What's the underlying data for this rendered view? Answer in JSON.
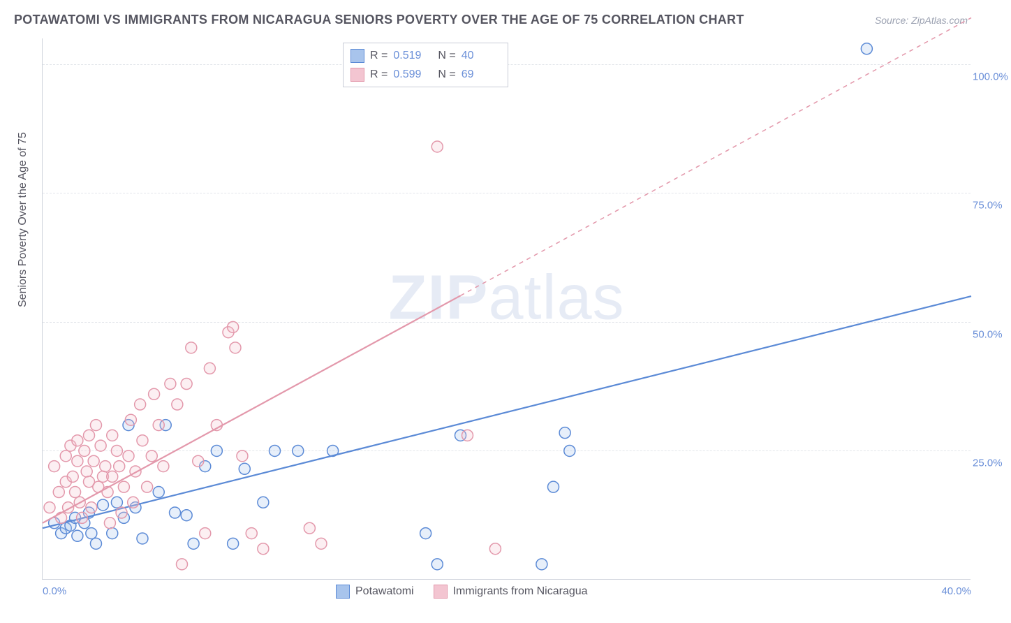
{
  "title": "POTAWATOMI VS IMMIGRANTS FROM NICARAGUA SENIORS POVERTY OVER THE AGE OF 75 CORRELATION CHART",
  "source": "Source: ZipAtlas.com",
  "y_axis_label": "Seniors Poverty Over the Age of 75",
  "watermark": {
    "part1": "ZIP",
    "part2": "atlas"
  },
  "chart": {
    "type": "scatter",
    "xlim": [
      0,
      40
    ],
    "ylim": [
      0,
      105
    ],
    "x_ticks": [
      {
        "v": 0,
        "label": "0.0%"
      },
      {
        "v": 40,
        "label": "40.0%"
      }
    ],
    "y_ticks": [
      {
        "v": 25,
        "label": "25.0%"
      },
      {
        "v": 50,
        "label": "50.0%"
      },
      {
        "v": 75,
        "label": "75.0%"
      },
      {
        "v": 100,
        "label": "100.0%"
      }
    ],
    "background_color": "#ffffff",
    "grid_color": "#e2e5ea",
    "marker_radius": 8,
    "marker_stroke_width": 1.5,
    "marker_fill_opacity": 0.28,
    "line_width": 2.2,
    "dash_pattern": "6 6",
    "series": [
      {
        "name": "Potawatomi",
        "color_stroke": "#5b8ad6",
        "color_fill": "#a8c4ec",
        "R": "0.519",
        "N": "40",
        "trend": {
          "x1": 0,
          "y1": 10,
          "x2": 40,
          "y2": 55,
          "solid_until_x": 40
        },
        "points": [
          [
            0.5,
            11
          ],
          [
            0.8,
            9
          ],
          [
            1.0,
            10
          ],
          [
            1.2,
            10.5
          ],
          [
            1.4,
            12
          ],
          [
            1.5,
            8.5
          ],
          [
            1.8,
            11
          ],
          [
            2.0,
            13
          ],
          [
            2.1,
            9
          ],
          [
            2.3,
            7
          ],
          [
            2.6,
            14.5
          ],
          [
            3.0,
            9
          ],
          [
            3.2,
            15
          ],
          [
            3.5,
            12
          ],
          [
            3.7,
            30
          ],
          [
            4.0,
            14
          ],
          [
            4.3,
            8
          ],
          [
            5.0,
            17
          ],
          [
            5.3,
            30
          ],
          [
            5.7,
            13
          ],
          [
            6.2,
            12.5
          ],
          [
            6.5,
            7
          ],
          [
            7.0,
            22
          ],
          [
            7.5,
            25
          ],
          [
            8.2,
            7
          ],
          [
            8.7,
            21.5
          ],
          [
            9.5,
            15
          ],
          [
            10.0,
            25
          ],
          [
            11.0,
            25
          ],
          [
            12.5,
            25
          ],
          [
            16.5,
            9
          ],
          [
            17.0,
            3
          ],
          [
            18.0,
            28
          ],
          [
            21.5,
            3
          ],
          [
            22.0,
            18
          ],
          [
            22.5,
            28.5
          ],
          [
            22.7,
            25
          ],
          [
            35.5,
            103
          ]
        ]
      },
      {
        "name": "Immigrants from Nicaragua",
        "color_stroke": "#e398ab",
        "color_fill": "#f3c5d1",
        "R": "0.599",
        "N": "69",
        "trend": {
          "x1": 0,
          "y1": 11,
          "x2": 40,
          "y2": 109,
          "solid_until_x": 18
        },
        "points": [
          [
            0.3,
            14
          ],
          [
            0.5,
            22
          ],
          [
            0.7,
            17
          ],
          [
            0.8,
            12
          ],
          [
            1.0,
            19
          ],
          [
            1.0,
            24
          ],
          [
            1.1,
            14
          ],
          [
            1.2,
            26
          ],
          [
            1.3,
            20
          ],
          [
            1.4,
            17
          ],
          [
            1.5,
            23
          ],
          [
            1.5,
            27
          ],
          [
            1.6,
            15
          ],
          [
            1.7,
            12
          ],
          [
            1.8,
            25
          ],
          [
            1.9,
            21
          ],
          [
            2.0,
            19
          ],
          [
            2.0,
            28
          ],
          [
            2.1,
            14
          ],
          [
            2.2,
            23
          ],
          [
            2.3,
            30
          ],
          [
            2.4,
            18
          ],
          [
            2.5,
            26
          ],
          [
            2.6,
            20
          ],
          [
            2.7,
            22
          ],
          [
            2.8,
            17
          ],
          [
            2.9,
            11
          ],
          [
            3.0,
            20
          ],
          [
            3.0,
            28
          ],
          [
            3.2,
            25
          ],
          [
            3.3,
            22
          ],
          [
            3.4,
            13
          ],
          [
            3.5,
            18
          ],
          [
            3.7,
            24
          ],
          [
            3.8,
            31
          ],
          [
            3.9,
            15
          ],
          [
            4.0,
            21
          ],
          [
            4.2,
            34
          ],
          [
            4.3,
            27
          ],
          [
            4.5,
            18
          ],
          [
            4.7,
            24
          ],
          [
            4.8,
            36
          ],
          [
            5.0,
            30
          ],
          [
            5.2,
            22
          ],
          [
            5.5,
            38
          ],
          [
            5.8,
            34
          ],
          [
            6.0,
            3
          ],
          [
            6.2,
            38
          ],
          [
            6.4,
            45
          ],
          [
            6.7,
            23
          ],
          [
            7.0,
            9
          ],
          [
            7.2,
            41
          ],
          [
            7.5,
            30
          ],
          [
            8.0,
            48
          ],
          [
            8.2,
            49
          ],
          [
            8.3,
            45
          ],
          [
            8.6,
            24
          ],
          [
            9.0,
            9
          ],
          [
            9.5,
            6
          ],
          [
            11.5,
            10
          ],
          [
            12.0,
            7
          ],
          [
            17.0,
            84
          ],
          [
            18.3,
            28
          ],
          [
            19.5,
            6
          ]
        ]
      }
    ]
  },
  "legend_top": {
    "r_label": "R  =",
    "n_label": "N  ="
  }
}
